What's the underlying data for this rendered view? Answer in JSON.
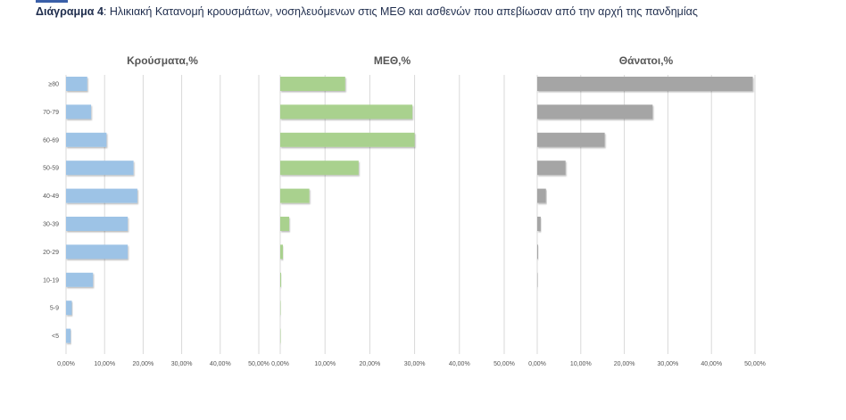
{
  "caption": {
    "lead": "Διάγραμμα 4",
    "text": ": Ηλικιακή Κατανομή κρουσμάτων, νοσηλευόμενων στις ΜΕΘ και ασθενών που απεβίωσαν από την αρχή της πανδημίας"
  },
  "colors": {
    "cases": "#9dc3e6",
    "icu": "#a9d18e",
    "deaths": "#a5a5a5",
    "grid": "#d9d9d9"
  },
  "chart_data": [
    {
      "type": "bar",
      "orientation": "horizontal",
      "title": "Κρούσματα,%",
      "categories": [
        "≥80",
        "70-79",
        "60-69",
        "50-59",
        "40-49",
        "30-39",
        "20-29",
        "10-19",
        "5-9",
        "<5"
      ],
      "values": [
        0.055,
        0.065,
        0.105,
        0.175,
        0.185,
        0.16,
        0.16,
        0.07,
        0.015,
        0.012
      ],
      "xlim": [
        0,
        0.5
      ],
      "xticks": [
        "0,00%",
        "10,00%",
        "20,00%",
        "30,00%",
        "40,00%",
        "50,00%"
      ],
      "color": "#9dc3e6",
      "grid": true
    },
    {
      "type": "bar",
      "orientation": "horizontal",
      "title": "ΜΕΘ,%",
      "categories": [
        "≥80",
        "70-79",
        "60-69",
        "50-59",
        "40-49",
        "30-39",
        "20-29",
        "10-19",
        "5-9",
        "<5"
      ],
      "values": [
        0.145,
        0.295,
        0.3,
        0.175,
        0.065,
        0.02,
        0.006,
        0.002,
        0.001,
        0.001
      ],
      "xlim": [
        0,
        0.5
      ],
      "xticks": [
        "0,00%",
        "10,00%",
        "20,00%",
        "30,00%",
        "40,00%",
        "50,00%"
      ],
      "color": "#a9d18e",
      "grid": true
    },
    {
      "type": "bar",
      "orientation": "horizontal",
      "title": "Θάνατοι,%",
      "categories": [
        "≥80",
        "70-79",
        "60-69",
        "50-59",
        "40-49",
        "30-39",
        "20-29",
        "10-19",
        "5-9",
        "<5"
      ],
      "values": [
        0.495,
        0.265,
        0.155,
        0.065,
        0.02,
        0.008,
        0.002,
        0.001,
        0.0,
        0.0
      ],
      "xlim": [
        0,
        0.5
      ],
      "xticks": [
        "0,00%",
        "10,00%",
        "20,00%",
        "30,00%",
        "40,00%",
        "50,00%"
      ],
      "color": "#a5a5a5",
      "grid": true
    }
  ]
}
